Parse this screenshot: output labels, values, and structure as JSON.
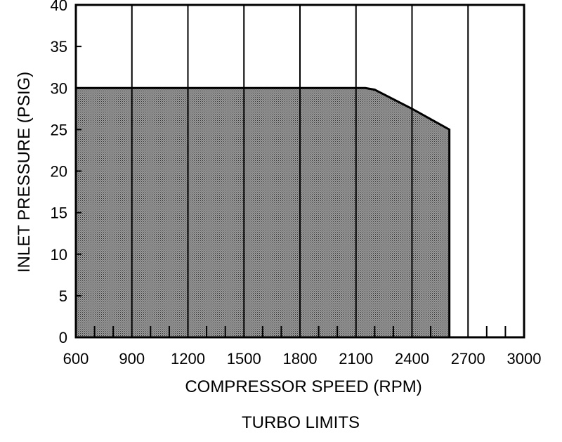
{
  "chart_data": {
    "type": "area",
    "title": "TURBO LIMITS",
    "xlabel": "COMPRESSOR SPEED (RPM)",
    "ylabel": "INLET PRESSURE (PSIG)",
    "x_ticks": [
      "600",
      "900",
      "1200",
      "1500",
      "1800",
      "2100",
      "2400",
      "2700",
      "3000"
    ],
    "y_ticks": [
      "0",
      "5",
      "10",
      "15",
      "20",
      "25",
      "30",
      "35",
      "40"
    ],
    "xlim": [
      600,
      3000
    ],
    "ylim": [
      0,
      40
    ],
    "grid": true,
    "series": [
      {
        "x": [
          600,
          2150,
          2200,
          2400,
          2600,
          2600
        ],
        "y": [
          30,
          30,
          29.8,
          27.5,
          25,
          0
        ],
        "fill": "#8a8a8a"
      }
    ]
  }
}
